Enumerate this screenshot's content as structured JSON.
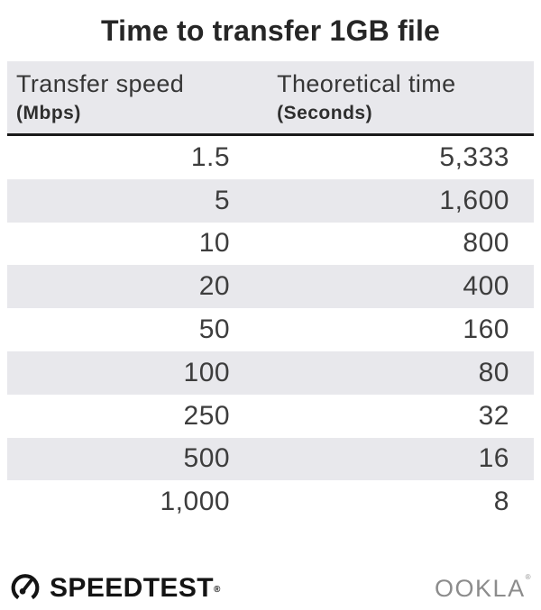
{
  "title": "Time to transfer 1GB file",
  "table": {
    "header": {
      "col1": {
        "line1": "Transfer speed",
        "line2": "(Mbps)"
      },
      "col2": {
        "line1": "Theoretical time",
        "line2": "(Seconds)"
      }
    },
    "rows": [
      {
        "speed": "1.5",
        "time": "5,333"
      },
      {
        "speed": "5",
        "time": "1,600"
      },
      {
        "speed": "10",
        "time": "800"
      },
      {
        "speed": "20",
        "time": "400"
      },
      {
        "speed": "50",
        "time": "160"
      },
      {
        "speed": "100",
        "time": "80"
      },
      {
        "speed": "250",
        "time": "32"
      },
      {
        "speed": "500",
        "time": "16"
      },
      {
        "speed": "1,000",
        "time": "8"
      }
    ]
  },
  "footer": {
    "speedtest_label": "SPEEDTEST",
    "speedtest_registered": "®",
    "speedtest_icon": "gauge-icon",
    "ookla_label": "OOKLA",
    "ookla_registered": "®"
  },
  "colors": {
    "stripe_gray": "#e8e8ec",
    "header_underline": "#1a1a1a",
    "title_text": "#262626",
    "body_text": "#3d3d3d",
    "ookla_gray": "#8c8c8c"
  },
  "chart_data": {
    "type": "table",
    "title": "Time to transfer 1GB file",
    "columns": [
      "Transfer speed (Mbps)",
      "Theoretical time (Seconds)"
    ],
    "x": [
      1.5,
      5,
      10,
      20,
      50,
      100,
      250,
      500,
      1000
    ],
    "values": [
      5333,
      1600,
      800,
      400,
      160,
      80,
      32,
      16,
      8
    ]
  }
}
